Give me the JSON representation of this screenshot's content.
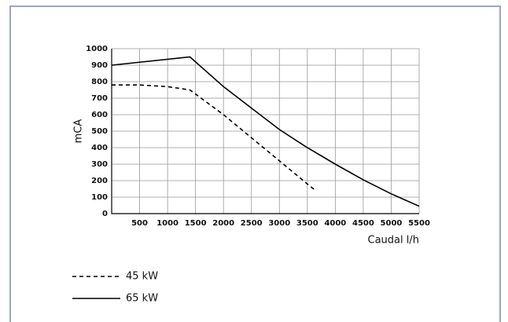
{
  "chart_data": {
    "type": "line",
    "x_label": "Caudal l/h",
    "y_label": "mCA",
    "xlim": [
      0,
      5500
    ],
    "xticks": [
      500,
      1000,
      1500,
      2000,
      2500,
      3000,
      3500,
      4000,
      4500,
      5000,
      5500
    ],
    "ylim": [
      0,
      1000
    ],
    "yticks": [
      0,
      100,
      200,
      300,
      400,
      500,
      600,
      700,
      800,
      900,
      1000
    ],
    "grid": true,
    "series": [
      {
        "name": "45 kW",
        "color": "#000000",
        "dash": true,
        "x": [
          0,
          500,
          1000,
          1400,
          1600,
          2000,
          2500,
          3000,
          3500,
          3650
        ],
        "values": [
          780,
          780,
          770,
          750,
          700,
          600,
          460,
          320,
          180,
          140
        ]
      },
      {
        "name": "65 kW",
        "color": "#000000",
        "dash": false,
        "x": [
          0,
          1400,
          2000,
          2500,
          3000,
          3500,
          4000,
          4500,
          5000,
          5500
        ],
        "values": [
          900,
          950,
          770,
          640,
          510,
          400,
          300,
          205,
          120,
          45
        ]
      }
    ]
  }
}
